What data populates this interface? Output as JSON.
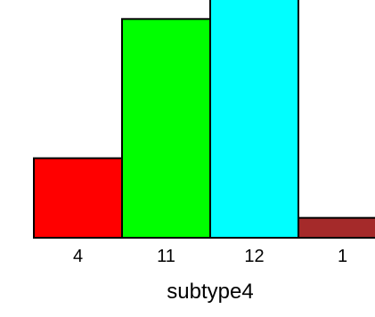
{
  "chart_data": {
    "type": "bar",
    "categories": [
      "4",
      "11",
      "12",
      "1"
    ],
    "values": [
      4,
      11,
      12,
      1
    ],
    "colors": [
      "#ff0000",
      "#00ff00",
      "#00ffff",
      "#a52a2a"
    ],
    "title": "",
    "xlabel": "subtype4",
    "ylabel": "",
    "ylim": [
      0,
      12
    ],
    "grid": false,
    "legend": "none"
  }
}
